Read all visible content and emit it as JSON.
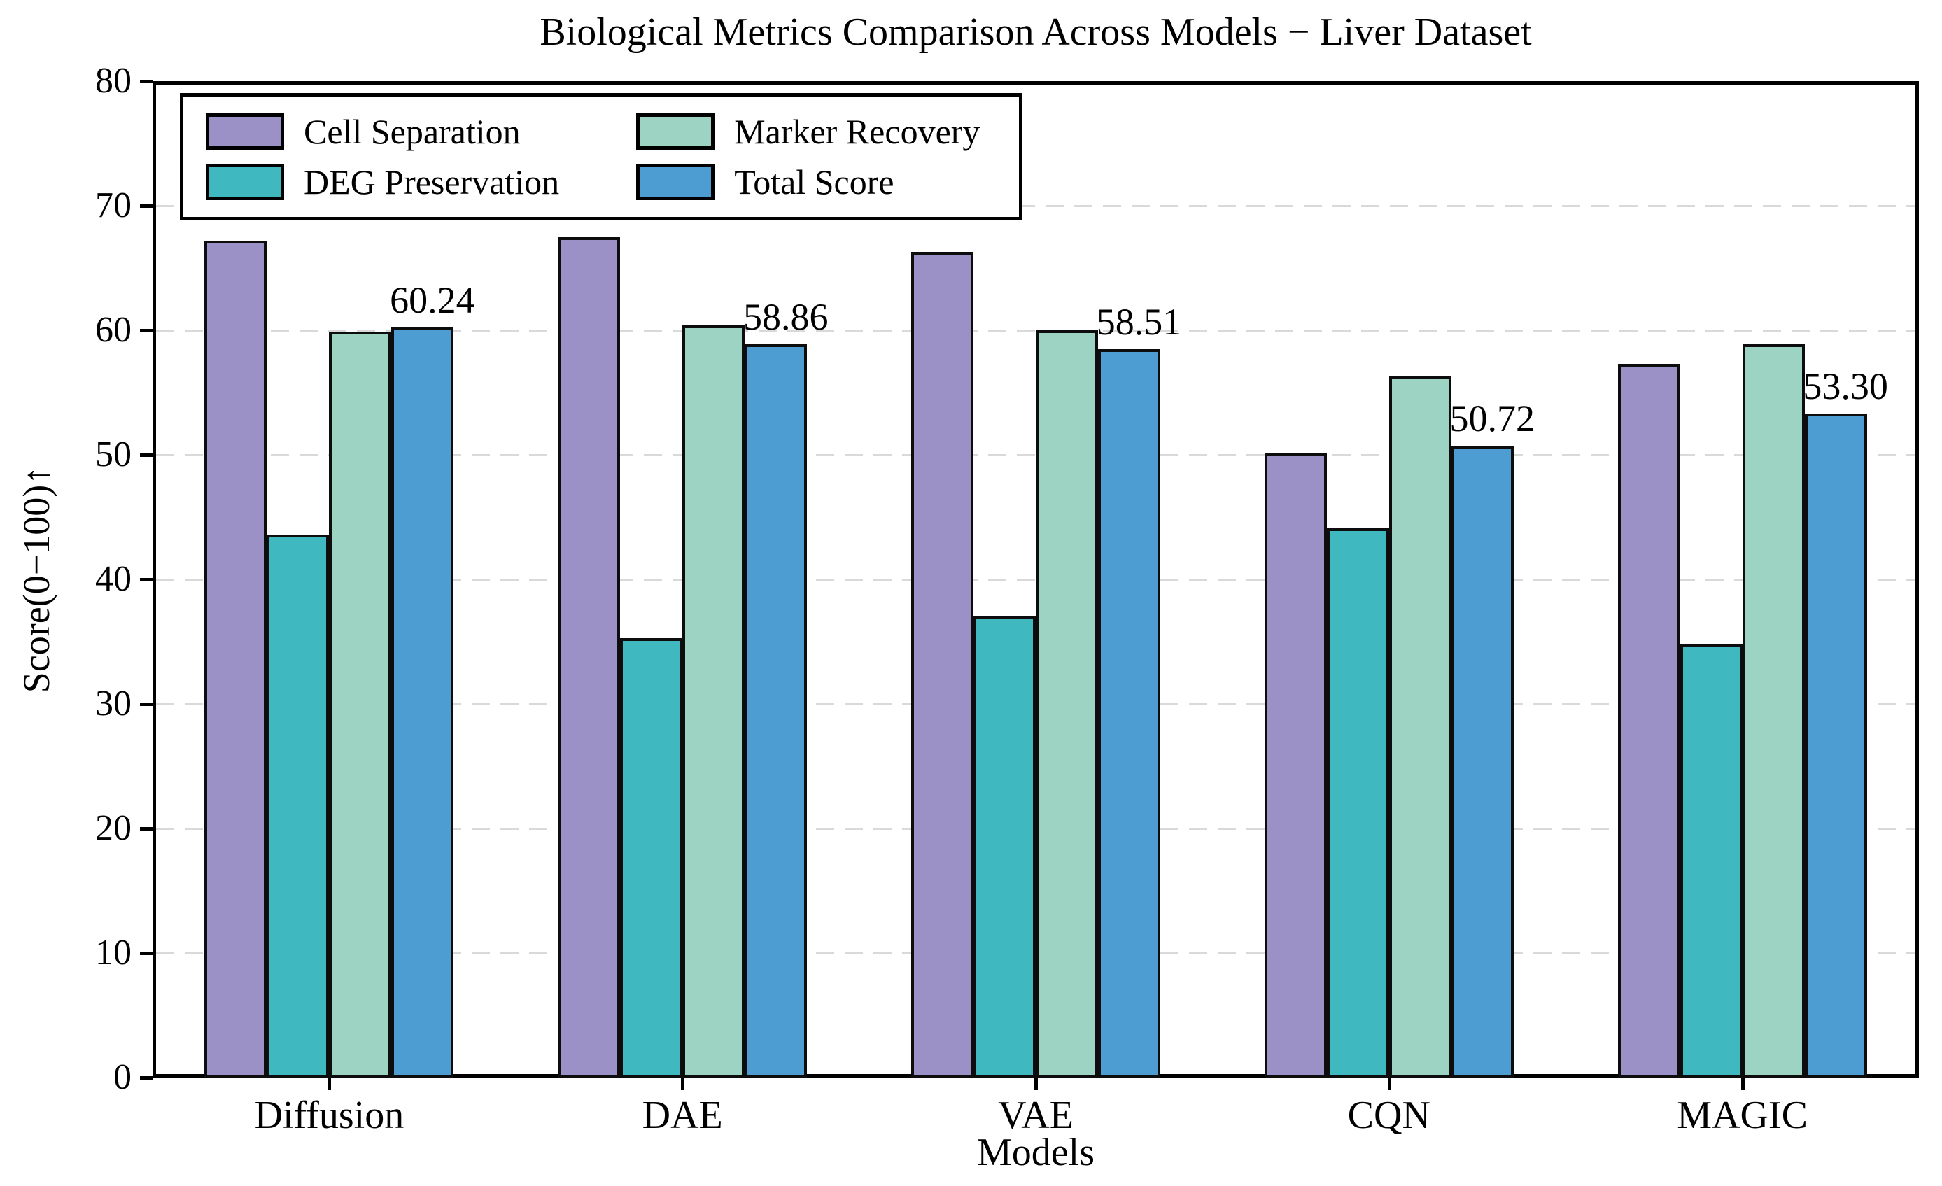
{
  "title": "Biological Metrics Comparison Across Models − Liver Dataset",
  "axes": {
    "y_label": "Score(0−100)↑",
    "x_label": "Models",
    "y_ticks": [
      0,
      10,
      20,
      30,
      40,
      50,
      60,
      70,
      80
    ]
  },
  "legend": {
    "entries": [
      "Cell Separation",
      "DEG Preservation",
      "Marker Recovery",
      "Total Score"
    ]
  },
  "colors": {
    "cell_separation": "#9c91c6",
    "deg_preservation": "#3fb8c0",
    "marker_recovery": "#9cd3c3",
    "total_score": "#4d9dd3",
    "bar_edge": "#0d0d0d",
    "gridline": "#d9d9d9"
  },
  "chart_data": {
    "type": "bar",
    "title": "Biological Metrics Comparison Across Models − Liver Dataset",
    "xlabel": "Models",
    "ylabel": "Score(0−100)↑",
    "ylim": [
      0,
      80
    ],
    "grid": "horizontal-dashed",
    "legend_position": "upper-left",
    "categories": [
      "Diffusion",
      "DAE",
      "VAE",
      "CQN",
      "MAGIC"
    ],
    "series": [
      {
        "name": "Cell Separation",
        "color": "#9c91c6",
        "values": [
          67.2,
          67.5,
          66.3,
          50.1,
          57.3
        ]
      },
      {
        "name": "DEG Preservation",
        "color": "#3fb8c0",
        "values": [
          43.6,
          35.3,
          37.0,
          44.1,
          34.8
        ]
      },
      {
        "name": "Marker Recovery",
        "color": "#9cd3c3",
        "values": [
          59.9,
          60.4,
          60.0,
          56.3,
          58.9
        ]
      },
      {
        "name": "Total Score",
        "color": "#4d9dd3",
        "values": [
          60.24,
          58.86,
          58.51,
          50.72,
          53.3
        ]
      }
    ],
    "bar_labels": {
      "series": "Total Score",
      "values": [
        "60.24",
        "58.86",
        "58.51",
        "50.72",
        "53.30"
      ]
    }
  }
}
